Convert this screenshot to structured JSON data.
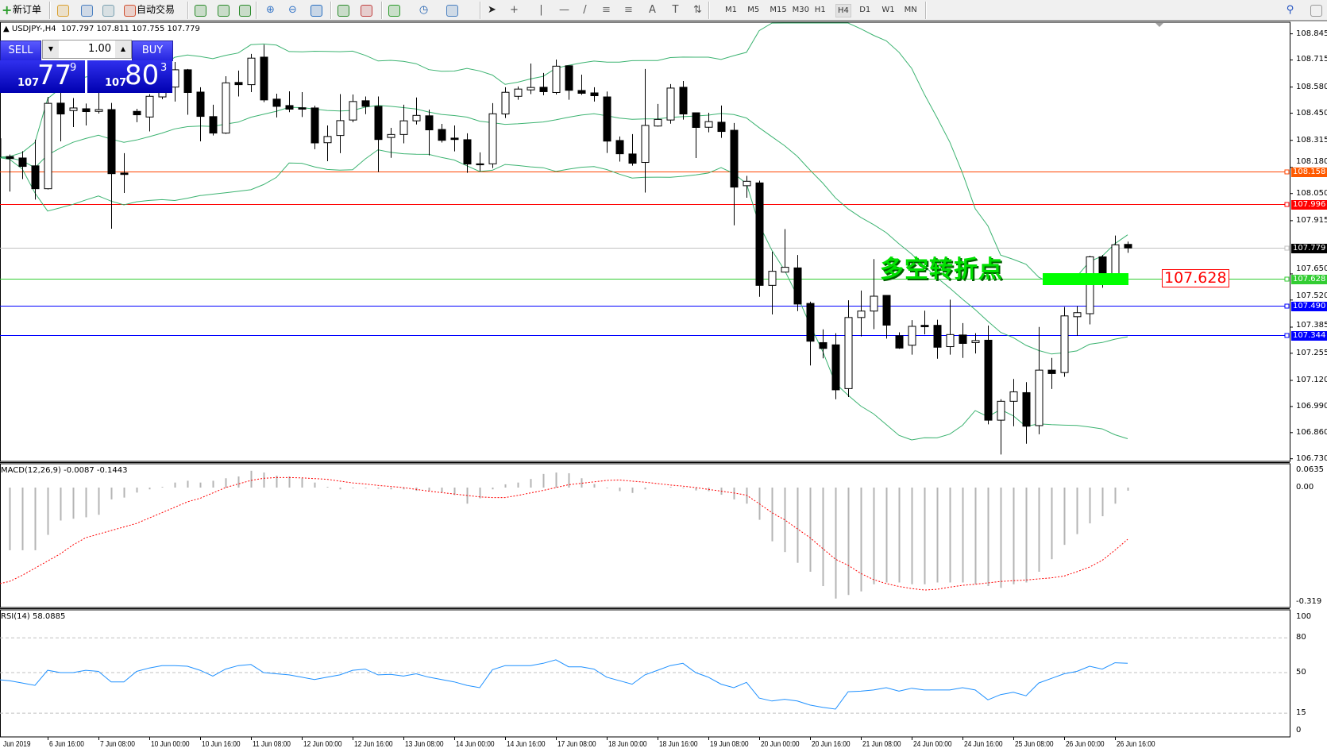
{
  "toolbar": {
    "new_order": "新订单",
    "auto_trading": "自动交易",
    "timeframes": [
      "M1",
      "M5",
      "M15",
      "M30",
      "H1",
      "H4",
      "D1",
      "W1",
      "MN"
    ],
    "active_timeframe": "H4",
    "icons": [
      "new-order-icon",
      "market-watch-icon",
      "navigator-icon",
      "signals-icon",
      "auto-trading-icon",
      "bar-chart-icon",
      "candlestick-icon",
      "line-chart-icon",
      "zoom-in-icon",
      "zoom-out-icon",
      "tile-windows-icon",
      "auto-scroll-icon",
      "chart-shift-icon",
      "indicators-icon",
      "periods-icon",
      "templates-icon",
      "cursor-icon",
      "crosshair-icon",
      "vertical-line-icon",
      "horizontal-line-icon",
      "trendline-icon",
      "fibonacci-icon",
      "channel-icon",
      "text-icon",
      "text-label-icon",
      "arrows-icon",
      "search-icon",
      "community-icon"
    ]
  },
  "header": {
    "symbol": "USDJPY-,H4",
    "ohlc": "107.797 107.811 107.755 107.779"
  },
  "one_click": {
    "sell_label": "SELL",
    "buy_label": "BUY",
    "lot": "1.00",
    "sell_price": {
      "big": "107",
      "main": "77",
      "sup": "9"
    },
    "buy_price": {
      "big": "107",
      "main": "80",
      "sup": "3"
    }
  },
  "colors": {
    "bull_body": "#ffffff",
    "bear_body": "#000000",
    "bands": "#3cb371",
    "macd_hist": "#b4b4b4",
    "macd_signal": "#ff0000",
    "rsi": "#1e90ff",
    "brand_blue": "#2828e8"
  },
  "price_axis": [
    "108.845",
    "108.715",
    "108.580",
    "108.450",
    "108.315",
    "108.180",
    "108.050",
    "107.915",
    "107.650",
    "107.520",
    "107.385",
    "107.255",
    "107.120",
    "106.990",
    "106.860",
    "106.730"
  ],
  "hlines": [
    {
      "price": 108.158,
      "label": "108.158",
      "color": "#ff4500",
      "label_bg": "#ff5a00"
    },
    {
      "price": 107.996,
      "label": "107.996",
      "color": "#ff0000",
      "label_bg": "#ff0000"
    },
    {
      "price": 107.779,
      "label": "107.779",
      "color": "#c0c0c0",
      "label_bg": "#000000"
    },
    {
      "price": 107.628,
      "label": "107.628",
      "color": "#32cd32",
      "label_bg": "#32cd32"
    },
    {
      "price": 107.49,
      "label": "107.490",
      "color": "#0000ff",
      "label_bg": "#0000ff"
    },
    {
      "price": 107.344,
      "label": "107.344",
      "color": "#0000ff",
      "label_bg": "#0000ff"
    }
  ],
  "annotation": {
    "text": "多空转折点",
    "price_label": "107.628"
  },
  "time_axis": [
    "Jun 2019",
    "6 Jun 16:00",
    "7 Jun 08:00",
    "10 Jun 00:00",
    "10 Jun 16:00",
    "11 Jun 08:00",
    "12 Jun 00:00",
    "12 Jun 16:00",
    "13 Jun 08:00",
    "14 Jun 00:00",
    "14 Jun 16:00",
    "17 Jun 08:00",
    "18 Jun 00:00",
    "18 Jun 16:00",
    "19 Jun 08:00",
    "20 Jun 00:00",
    "20 Jun 16:00",
    "21 Jun 08:00",
    "24 Jun 00:00",
    "24 Jun 16:00",
    "25 Jun 08:00",
    "26 Jun 00:00",
    "26 Jun 16:00"
  ],
  "macd": {
    "label": "MACD(12,26,9) -0.0087 -0.1443",
    "axis": [
      "0.0635",
      "0.00",
      "-0.319"
    ]
  },
  "rsi": {
    "label": "RSI(14) 58.0885",
    "axis": [
      "100",
      "80",
      "50",
      "15",
      "0"
    ]
  },
  "chart_data": {
    "type": "candlestick",
    "symbol": "USDJPY-",
    "timeframe": "H4",
    "ylim": [
      106.73,
      108.845
    ],
    "bollinger_period": 20,
    "bollinger_dev": 2,
    "candles_ohlc": [
      [
        108.323,
        108.33,
        108.22,
        108.231
      ],
      [
        108.234,
        108.244,
        108.06,
        108.224
      ],
      [
        108.227,
        108.261,
        108.122,
        108.185
      ],
      [
        108.188,
        108.318,
        108.02,
        108.074
      ],
      [
        108.074,
        108.531,
        108.07,
        108.499
      ],
      [
        108.5,
        108.555,
        108.31,
        108.446
      ],
      [
        108.463,
        108.525,
        108.381,
        108.476
      ],
      [
        108.472,
        108.498,
        108.389,
        108.458
      ],
      [
        108.459,
        108.567,
        108.448,
        108.468
      ],
      [
        108.468,
        108.501,
        107.875,
        108.149
      ],
      [
        108.152,
        108.251,
        108.053,
        108.145
      ],
      [
        108.459,
        108.472,
        108.405,
        108.442
      ],
      [
        108.431,
        108.545,
        108.359,
        108.534
      ],
      [
        108.531,
        108.6,
        108.52,
        108.58
      ],
      [
        108.58,
        108.705,
        108.508,
        108.666
      ],
      [
        108.666,
        108.67,
        108.442,
        108.553
      ],
      [
        108.555,
        108.579,
        108.31,
        108.434
      ],
      [
        108.433,
        108.492,
        108.339,
        108.351
      ],
      [
        108.351,
        108.634,
        108.347,
        108.601
      ],
      [
        108.603,
        108.662,
        108.533,
        108.592
      ],
      [
        108.592,
        108.745,
        108.555,
        108.724
      ],
      [
        108.729,
        108.791,
        108.505,
        108.516
      ],
      [
        108.52,
        108.547,
        108.429,
        108.484
      ],
      [
        108.488,
        108.559,
        108.455,
        108.47
      ],
      [
        108.477,
        108.555,
        108.431,
        108.47
      ],
      [
        108.476,
        108.487,
        108.271,
        108.302
      ],
      [
        108.303,
        108.389,
        108.211,
        108.334
      ],
      [
        108.339,
        108.545,
        108.251,
        108.413
      ],
      [
        108.416,
        108.543,
        108.405,
        108.508
      ],
      [
        108.512,
        108.533,
        108.445,
        108.484
      ],
      [
        108.484,
        108.533,
        108.157,
        108.319
      ],
      [
        108.329,
        108.377,
        108.228,
        108.344
      ],
      [
        108.344,
        108.492,
        108.3,
        108.412
      ],
      [
        108.412,
        108.528,
        108.394,
        108.439
      ],
      [
        108.437,
        108.468,
        108.24,
        108.367
      ],
      [
        108.369,
        108.397,
        108.304,
        108.315
      ],
      [
        108.326,
        108.389,
        108.26,
        108.319
      ],
      [
        108.318,
        108.35,
        108.153,
        108.197
      ],
      [
        108.198,
        108.255,
        108.161,
        108.193
      ],
      [
        108.198,
        108.5,
        108.177,
        108.447
      ],
      [
        108.446,
        108.579,
        108.426,
        108.554
      ],
      [
        108.534,
        108.583,
        108.517,
        108.57
      ],
      [
        108.566,
        108.697,
        108.545,
        108.578
      ],
      [
        108.579,
        108.65,
        108.539,
        108.557
      ],
      [
        108.553,
        108.717,
        108.543,
        108.684
      ],
      [
        108.686,
        108.686,
        108.517,
        108.564
      ],
      [
        108.563,
        108.642,
        108.541,
        108.549
      ],
      [
        108.551,
        108.579,
        108.508,
        108.537
      ],
      [
        108.531,
        108.558,
        108.252,
        108.311
      ],
      [
        108.314,
        108.334,
        108.209,
        108.248
      ],
      [
        108.247,
        108.346,
        108.189,
        108.201
      ],
      [
        108.205,
        108.67,
        108.055,
        108.389
      ],
      [
        108.386,
        108.496,
        108.383,
        108.419
      ],
      [
        108.416,
        108.595,
        108.398,
        108.575
      ],
      [
        108.579,
        108.61,
        108.418,
        108.446
      ],
      [
        108.452,
        108.452,
        108.227,
        108.379
      ],
      [
        108.38,
        108.452,
        108.355,
        108.408
      ],
      [
        108.405,
        108.488,
        108.327,
        108.359
      ],
      [
        108.365,
        108.401,
        107.892,
        108.082
      ],
      [
        108.089,
        108.138,
        108.029,
        108.111
      ],
      [
        108.103,
        108.114,
        107.536,
        107.593
      ],
      [
        107.593,
        107.761,
        107.448,
        107.663
      ],
      [
        107.659,
        107.873,
        107.659,
        107.683
      ],
      [
        107.68,
        107.744,
        107.465,
        107.5
      ],
      [
        107.503,
        107.512,
        107.194,
        107.315
      ],
      [
        107.308,
        107.374,
        107.23,
        107.279
      ],
      [
        107.297,
        107.355,
        107.026,
        107.073
      ],
      [
        107.079,
        107.519,
        107.037,
        107.433
      ],
      [
        107.433,
        107.567,
        107.339,
        107.465
      ],
      [
        107.465,
        107.724,
        107.375,
        107.539
      ],
      [
        107.543,
        107.543,
        107.328,
        107.395
      ],
      [
        107.342,
        107.359,
        107.277,
        107.281
      ],
      [
        107.295,
        107.42,
        107.248,
        107.389
      ],
      [
        107.394,
        107.467,
        107.349,
        107.387
      ],
      [
        107.394,
        107.422,
        107.228,
        107.285
      ],
      [
        107.288,
        107.522,
        107.248,
        107.348
      ],
      [
        107.346,
        107.405,
        107.232,
        107.304
      ],
      [
        107.308,
        107.355,
        107.254,
        107.318
      ],
      [
        107.32,
        107.393,
        106.901,
        106.922
      ],
      [
        106.922,
        107.026,
        106.751,
        107.016
      ],
      [
        107.016,
        107.127,
        106.892,
        107.063
      ],
      [
        107.059,
        107.111,
        106.805,
        106.892
      ],
      [
        106.895,
        107.386,
        106.852,
        107.171
      ],
      [
        107.171,
        107.232,
        107.077,
        107.154
      ],
      [
        107.159,
        107.485,
        107.138,
        107.441
      ],
      [
        107.437,
        107.489,
        107.342,
        107.457
      ],
      [
        107.452,
        107.74,
        107.399,
        107.735
      ],
      [
        107.735,
        107.744,
        107.581,
        107.61
      ],
      [
        107.61,
        107.841,
        107.6,
        107.795
      ],
      [
        107.797,
        107.811,
        107.755,
        107.779
      ]
    ],
    "macd_main": [
      -0.18,
      -0.175,
      -0.175,
      -0.175,
      -0.132,
      -0.092,
      -0.087,
      -0.083,
      -0.076,
      -0.033,
      -0.028,
      -0.014,
      -0.005,
      0.002,
      0.014,
      0.019,
      0.014,
      0.019,
      0.026,
      0.031,
      0.047,
      0.042,
      0.033,
      0.031,
      0.026,
      0.014,
      0.002,
      -0.005,
      -0.002,
      -0.002,
      -0.003,
      -0.005,
      -0.005,
      -0.009,
      -0.009,
      -0.014,
      -0.021,
      -0.045,
      -0.03,
      -0.005,
      0.009,
      0.014,
      0.024,
      0.038,
      0.042,
      0.04,
      0.026,
      0.01,
      -0.002,
      -0.01,
      -0.015,
      -0.005,
      0.0,
      0.002,
      -0.002,
      -0.008,
      -0.01,
      -0.02,
      -0.033,
      -0.045,
      -0.09,
      -0.15,
      -0.18,
      -0.21,
      -0.235,
      -0.275,
      -0.31,
      -0.3,
      -0.29,
      -0.27,
      -0.265,
      -0.265,
      -0.27,
      -0.27,
      -0.265,
      -0.265,
      -0.265,
      -0.27,
      -0.275,
      -0.28,
      -0.27,
      -0.265,
      -0.235,
      -0.2,
      -0.16,
      -0.13,
      -0.1,
      -0.08,
      -0.045,
      -0.0087
    ],
    "macd_signal": [
      -0.27,
      -0.262,
      -0.245,
      -0.225,
      -0.205,
      -0.185,
      -0.16,
      -0.14,
      -0.13,
      -0.12,
      -0.11,
      -0.1,
      -0.085,
      -0.07,
      -0.055,
      -0.04,
      -0.03,
      -0.015,
      0.0,
      0.01,
      0.02,
      0.026,
      0.028,
      0.028,
      0.027,
      0.025,
      0.023,
      0.018,
      0.013,
      0.01,
      0.006,
      0.003,
      0.0,
      -0.005,
      -0.01,
      -0.014,
      -0.018,
      -0.022,
      -0.026,
      -0.028,
      -0.028,
      -0.022,
      -0.015,
      -0.008,
      0.0,
      0.008,
      0.012,
      0.016,
      0.02,
      0.021,
      0.018,
      0.015,
      0.011,
      0.007,
      0.004,
      0.0,
      -0.005,
      -0.01,
      -0.015,
      -0.021,
      -0.045,
      -0.07,
      -0.09,
      -0.115,
      -0.14,
      -0.17,
      -0.2,
      -0.217,
      -0.24,
      -0.257,
      -0.268,
      -0.276,
      -0.282,
      -0.286,
      -0.284,
      -0.278,
      -0.273,
      -0.27,
      -0.266,
      -0.262,
      -0.26,
      -0.258,
      -0.255,
      -0.252,
      -0.247,
      -0.235,
      -0.222,
      -0.203,
      -0.175,
      -0.1443
    ],
    "macd_ylim": [
      -0.319,
      0.0635
    ],
    "rsi_values": [
      44,
      43,
      41,
      39,
      52,
      50,
      50,
      52,
      51,
      42,
      42,
      51,
      54,
      56,
      56,
      55.5,
      52,
      47,
      53,
      56,
      57,
      50,
      49,
      48,
      46,
      44,
      46,
      48,
      52,
      53,
      48,
      48.5,
      47,
      49,
      46,
      44,
      42,
      39,
      37,
      52.5,
      56,
      56,
      56,
      58,
      61,
      55,
      55,
      53,
      46,
      43,
      40,
      48,
      52,
      56,
      58,
      50,
      46,
      40,
      37,
      41.6,
      28,
      25.5,
      27,
      25.5,
      22,
      20,
      18.5,
      33.5,
      34,
      35,
      37,
      34,
      36.5,
      35,
      35,
      35,
      37,
      35,
      26.5,
      31,
      33,
      30,
      41,
      45,
      49,
      51,
      55.5,
      53,
      58.5,
      58.0885
    ],
    "rsi_levels": [
      80,
      50,
      15
    ],
    "rsi_ylim": [
      0,
      100
    ]
  }
}
